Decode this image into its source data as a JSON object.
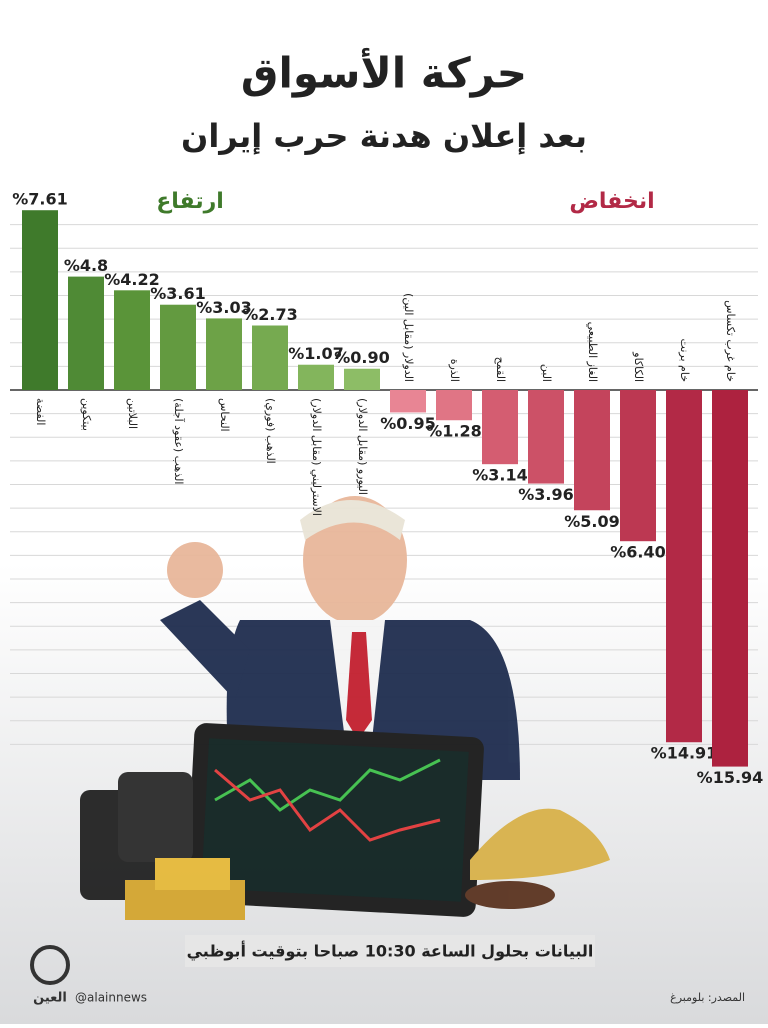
{
  "chart_data": {
    "type": "bar",
    "title": "حركة الأسواق",
    "subtitle": "بعد إعلان هدنة حرب إيران",
    "rise_label": "ارتفاع",
    "fall_label": "انخفاض",
    "categories": [
      "الفضة",
      "بيتكوين",
      "البلاتين",
      "الذهب (عقود آجلة)",
      "النحاس",
      "الذهب (فوري)",
      "الاسترليني (مقابل الدولار)",
      "اليورو (مقابل الدولار)",
      "الدولار (مقابل الين)",
      "الذرة",
      "القمح",
      "البن",
      "الغاز الطبيعي",
      "الكاكاو",
      "خام برنت",
      "خام غرب تكساس"
    ],
    "values": [
      7.61,
      4.8,
      4.22,
      3.61,
      3.03,
      2.73,
      1.07,
      0.9,
      -0.95,
      -1.28,
      -3.14,
      -3.96,
      -5.09,
      -6.4,
      -14.91,
      -15.94
    ],
    "value_labels": [
      "%7.61",
      "%4.8",
      "%4.22",
      "%3.61",
      "%3.03",
      "%2.73",
      "%1.07",
      "%0.90",
      "%0.95",
      "%1.28",
      "%3.14",
      "%3.96",
      "%5.09",
      "%6.40",
      "%14.91",
      "%15.94"
    ],
    "colors": [
      "#3f7a2b",
      "#4f8a35",
      "#5a9439",
      "#639a40",
      "#6da247",
      "#76aa50",
      "#83b55c",
      "#8dbd66",
      "#e88594",
      "#e07585",
      "#d45d71",
      "#cc5167",
      "#c4445c",
      "#bc3852",
      "#b22946",
      "#ad223f"
    ],
    "ylim": [
      -16,
      8
    ],
    "grid": true,
    "footnote": "البيانات بحلول الساعة 10:30 صباحا بتوقيت أبوظبي",
    "handle": "@alainnews",
    "source": "المصدر: بلومبرغ",
    "logo": "العين"
  }
}
